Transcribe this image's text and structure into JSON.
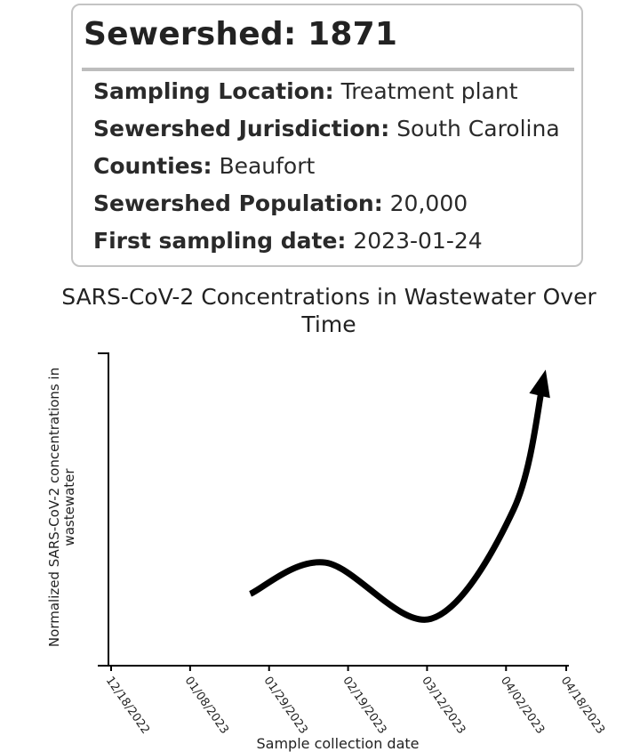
{
  "card": {
    "title": "Sewershed: 1871",
    "rows": [
      {
        "label": "Sampling Location:",
        "value": "Treatment plant"
      },
      {
        "label": "Sewershed Jurisdiction:",
        "value": "South Carolina"
      },
      {
        "label": "Counties:",
        "value": "Beaufort"
      },
      {
        "label": "Sewershed Population:",
        "value": "20,000"
      },
      {
        "label": "First sampling date:",
        "value": "2023-01-24"
      }
    ]
  },
  "chart_data": {
    "type": "line",
    "title": "SARS-CoV-2 Concentrations in Wastewater Over Time",
    "xlabel": "Sample collection date",
    "ylabel": "Normalized SARS-CoV-2 concentrations in wastewater",
    "x_tick_labels": [
      "12/18/2022",
      "01/08/2023",
      "01/29/2023",
      "02/19/2023",
      "03/12/2023",
      "04/02/2023",
      "04/18/2023"
    ],
    "x_ticks": [
      "2022-12-18",
      "2023-01-08",
      "2023-01-29",
      "2023-02-19",
      "2023-03-12",
      "2023-04-02",
      "2023-04-18"
    ],
    "y_tick_labels": [],
    "grid": false,
    "series": [
      {
        "points": [
          {
            "x": "2023-01-24",
            "y": 0.23
          },
          {
            "x": "2023-02-13",
            "y": 0.33
          },
          {
            "x": "2023-03-13",
            "y": 0.15
          },
          {
            "x": "2023-04-04",
            "y": 0.5
          },
          {
            "x": "2023-04-12",
            "y": 0.92
          }
        ],
        "end_marker": "arrow",
        "color": "#000000"
      }
    ]
  }
}
